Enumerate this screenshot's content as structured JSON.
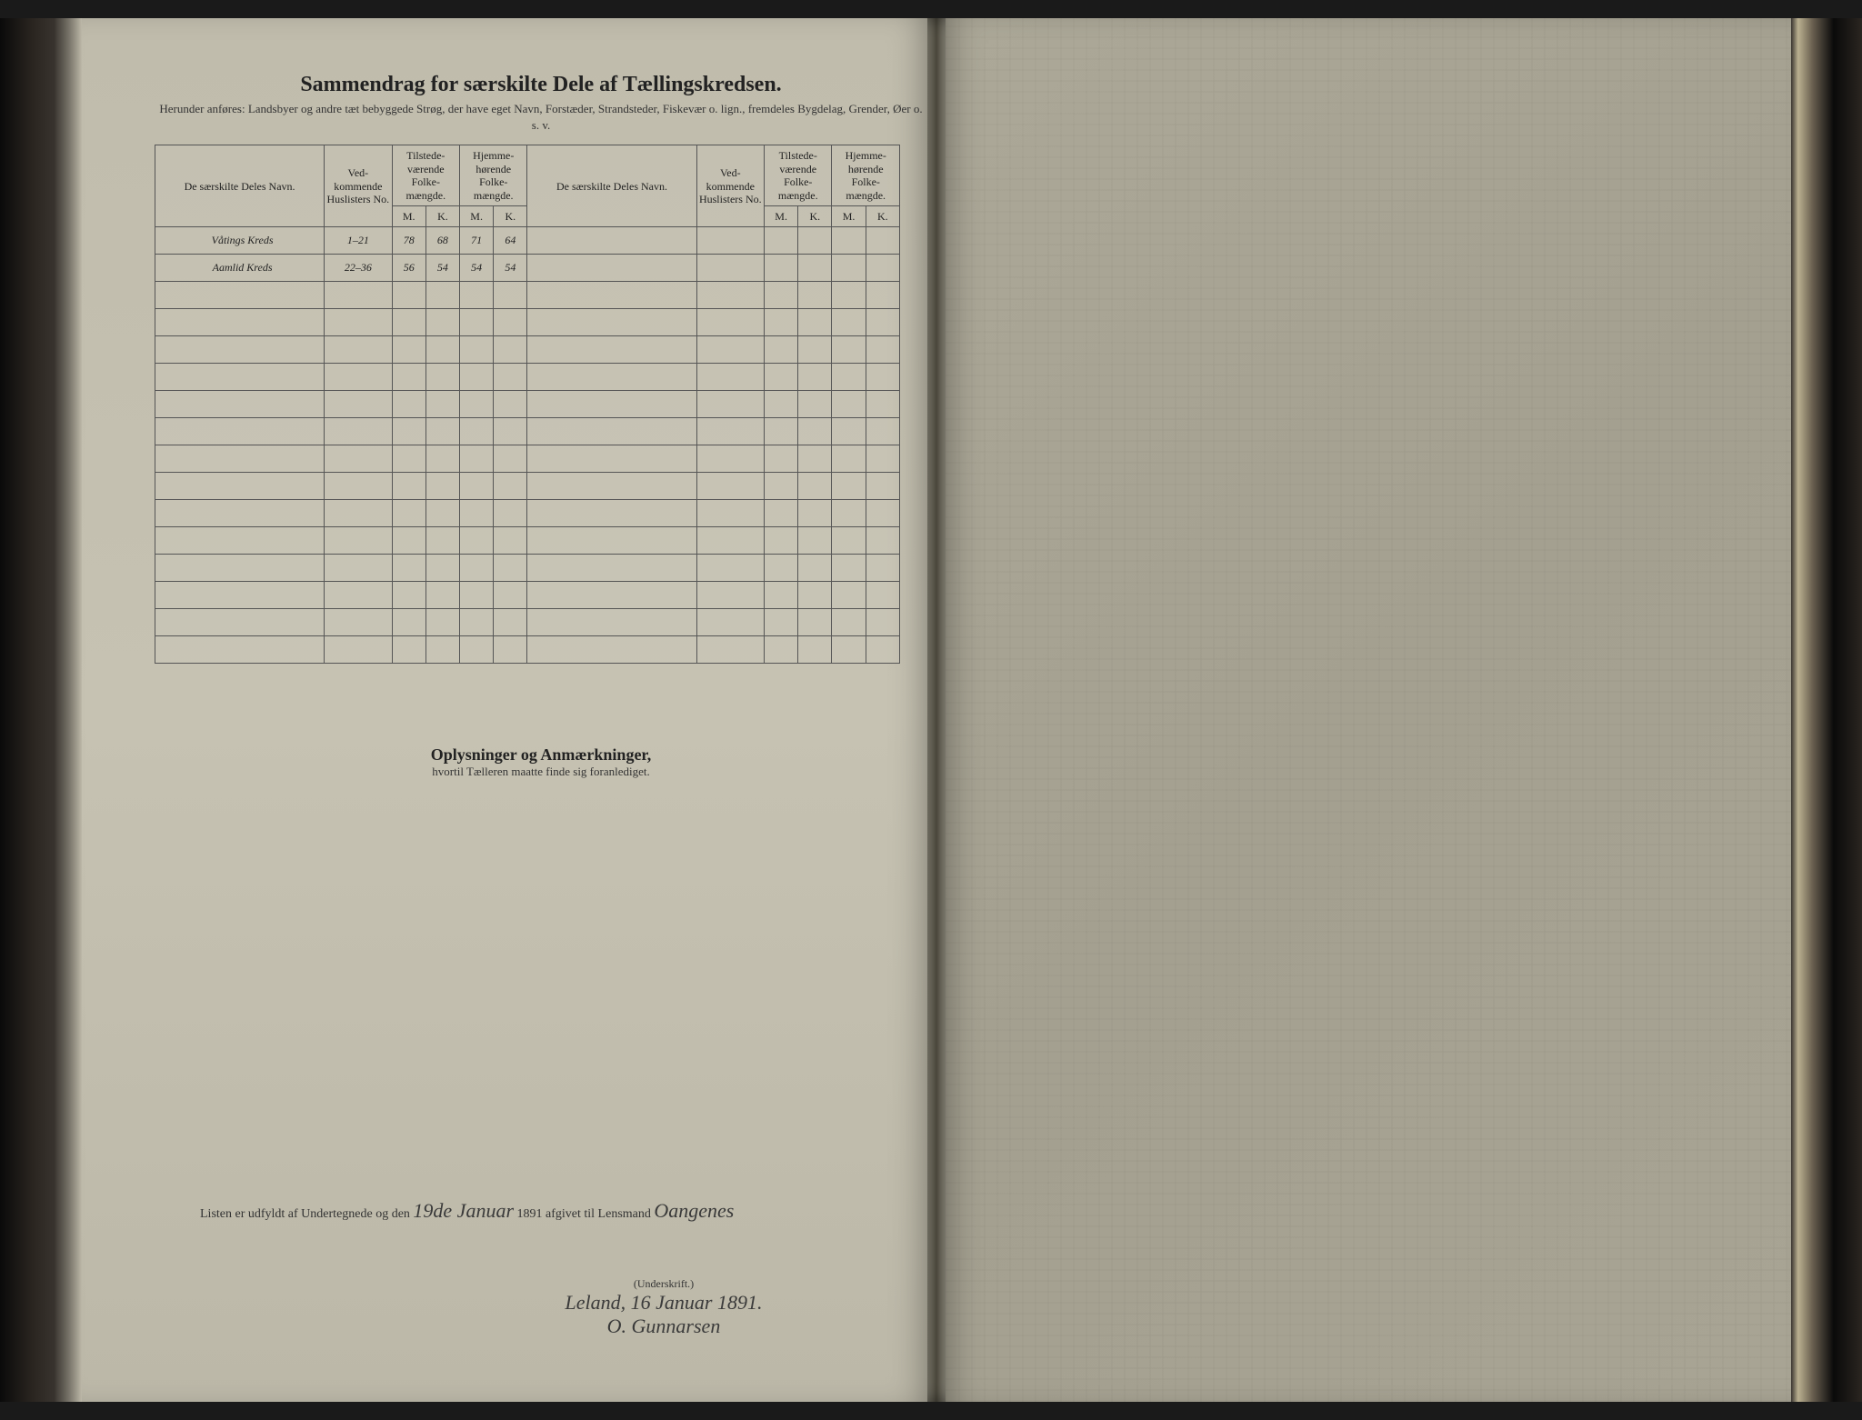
{
  "colors": {
    "page_bg": "#c0bcac",
    "right_page_bg": "#a8a498",
    "ink": "#222222",
    "handwriting": "#3a3a3a",
    "rule": "#555555",
    "spine_dark": "#0a0a0a"
  },
  "typography": {
    "title_pt": 24,
    "subtitle_pt": 13,
    "table_header_pt": 12,
    "handwriting_pt": 20,
    "notes_title_pt": 18
  },
  "header": {
    "title": "Sammendrag for særskilte Dele af Tællingskredsen.",
    "subtitle": "Herunder anføres: Landsbyer og andre tæt bebyggede Strøg, der have eget Navn, Forstæder, Strandsteder, Fiskevær o. lign., fremdeles Bygdelag, Grender, Øer o. s. v."
  },
  "table": {
    "columns": {
      "name": "De særskilte Deles Navn.",
      "huslister": "Ved-\nkommende\nHuslisters\nNo.",
      "tilstede": "Tilstede-\nværende\nFolke-\nmængde.",
      "hjemme": "Hjemme-\nhørende\nFolke-\nmængde.",
      "m": "M.",
      "k": "K."
    },
    "rows": [
      {
        "name": "Våtings Kreds",
        "no": "1–21",
        "tm": "78",
        "tk": "68",
        "hm": "71",
        "hk": "64"
      },
      {
        "name": "Aamlid Kreds",
        "no": "22–36",
        "tm": "56",
        "tk": "54",
        "hm": "54",
        "hk": "54"
      }
    ],
    "blank_rows": 14
  },
  "notes": {
    "title": "Oplysninger og Anmærkninger,",
    "sub": "hvortil Tælleren maatte finde sig foranlediget."
  },
  "footer": {
    "prefix": "Listen er udfyldt af Undertegnede og den ",
    "date_hand": "19de Januar",
    "mid": " 1891 afgivet til Lensmand ",
    "lensmand": "Oangenes",
    "sig_label": "(Underskrift.)",
    "place_date": "Leland, 16 Januar 1891.",
    "signature": "O. Gunnarsen"
  }
}
